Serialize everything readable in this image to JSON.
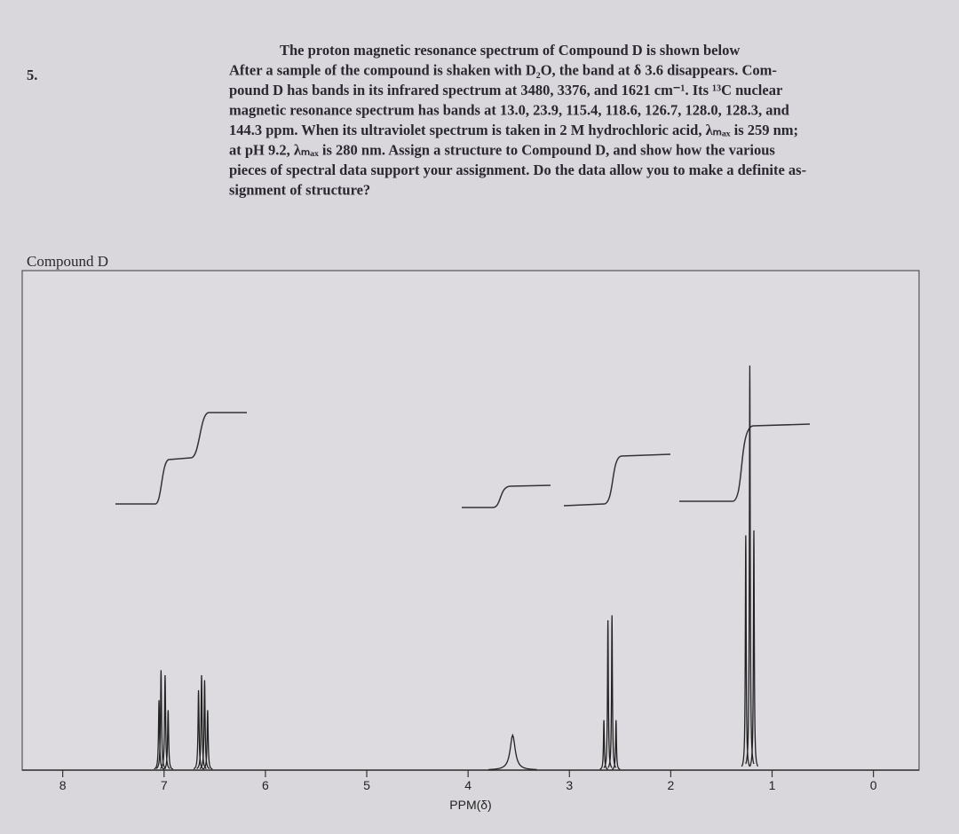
{
  "problem": {
    "number": "5.",
    "lines": [
      "The proton magnetic resonance spectrum of Compound D is shown below",
      "After a sample of the compound is shaken with D₂O, the band at δ 3.6 disappears. Com-",
      "pound D has bands in its infrared spectrum at 3480, 3376, and 1621 cm⁻¹. Its ¹³C nuclear",
      "magnetic resonance spectrum has bands at 13.0, 23.9, 115.4, 118.6, 126.7, 128.0, 128.3, and",
      "144.3 ppm. When its ultraviolet spectrum is taken in 2 M hydrochloric acid, λₘₐₓ is 259 nm;",
      "at pH 9.2, λₘₐₓ is 280 nm. Assign a structure to Compound D, and show how the various",
      "pieces of spectral data support your assignment. Do the data allow you to make a definite as-",
      "signment of structure?"
    ]
  },
  "chart_data": {
    "type": "nmr",
    "title": "Compound D",
    "xlabel": "PPM(δ)",
    "xlim": [
      8.4,
      -0.45
    ],
    "ylim": [
      0,
      100
    ],
    "xticks": [
      8,
      7,
      6,
      5,
      4,
      3,
      2,
      1,
      0
    ],
    "color": "#222222",
    "peaks": [
      {
        "ppm": 7.05,
        "height": 14,
        "width": 0.006
      },
      {
        "ppm": 7.03,
        "height": 20,
        "width": 0.006
      },
      {
        "ppm": 6.99,
        "height": 19,
        "width": 0.006
      },
      {
        "ppm": 6.96,
        "height": 12,
        "width": 0.006
      },
      {
        "ppm": 6.66,
        "height": 16,
        "width": 0.006
      },
      {
        "ppm": 6.63,
        "height": 19,
        "width": 0.006
      },
      {
        "ppm": 6.6,
        "height": 18,
        "width": 0.006
      },
      {
        "ppm": 6.57,
        "height": 12,
        "width": 0.006
      },
      {
        "ppm": 3.56,
        "height": 7,
        "width": 0.03
      },
      {
        "ppm": 2.66,
        "height": 10,
        "width": 0.005
      },
      {
        "ppm": 2.62,
        "height": 30,
        "width": 0.005
      },
      {
        "ppm": 2.58,
        "height": 31,
        "width": 0.005
      },
      {
        "ppm": 2.54,
        "height": 10,
        "width": 0.005
      },
      {
        "ppm": 1.26,
        "height": 47,
        "width": 0.005
      },
      {
        "ppm": 1.22,
        "height": 81,
        "width": 0.005
      },
      {
        "ppm": 1.18,
        "height": 48,
        "width": 0.005
      }
    ]
  }
}
